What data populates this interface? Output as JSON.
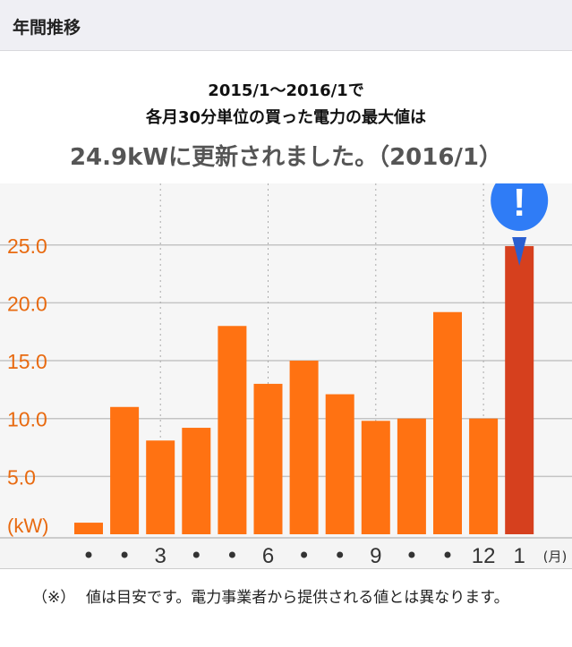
{
  "header": {
    "title": "年間推移"
  },
  "summary": {
    "line1": "2015/1〜2016/1で",
    "line2": "各月30分単位の買った電力の最大値は",
    "line3": "24.9kWに更新されました。（2016/1）"
  },
  "chart_data": {
    "type": "bar",
    "categories": [
      "•",
      "•",
      "3",
      "•",
      "•",
      "6",
      "•",
      "•",
      "9",
      "•",
      "•",
      "12",
      "1"
    ],
    "values": [
      1.0,
      11.0,
      8.1,
      9.2,
      18.0,
      13.0,
      15.0,
      12.1,
      9.8,
      10.0,
      19.2,
      10.0,
      24.9
    ],
    "highlight_index": 12,
    "ylabel": "(kW)",
    "xlabel": "(月)",
    "yticks": [
      "5.0",
      "10.0",
      "15.0",
      "20.0",
      "25.0"
    ],
    "ylim": [
      0,
      30
    ],
    "grid": true,
    "colors": {
      "bar": "#ff7212",
      "highlight": "#d6401e",
      "marker": "#2f7cf6",
      "tick": "#e86a10"
    },
    "marker_icon": "exclamation-pin-icon",
    "marker_text": "!"
  },
  "note": {
    "mark": "（※）",
    "text": "値は目安です。電力事業者から提供される値とは異なります。"
  }
}
